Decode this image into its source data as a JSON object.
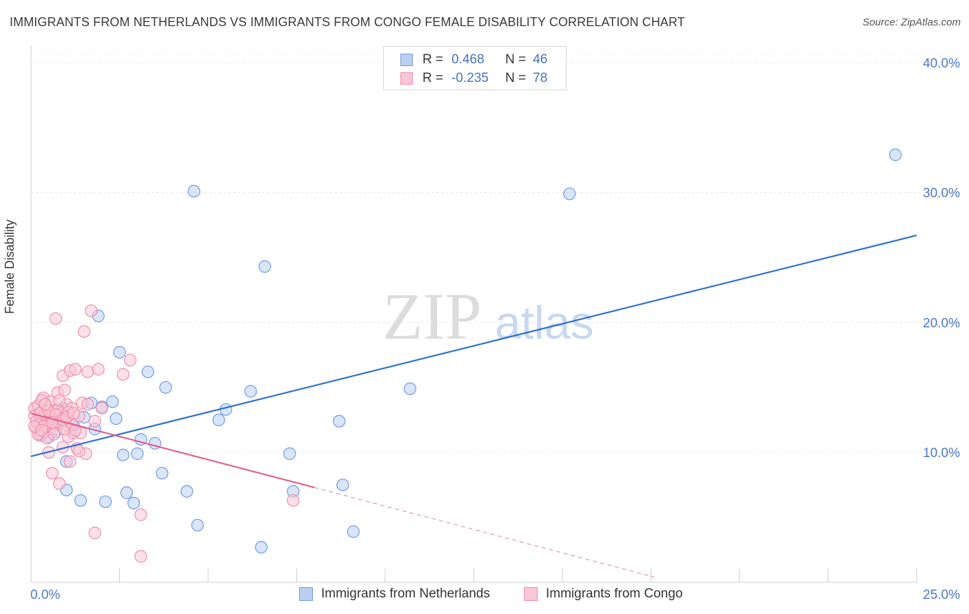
{
  "title": "IMMIGRANTS FROM NETHERLANDS VS IMMIGRANTS FROM CONGO FEMALE DISABILITY CORRELATION CHART",
  "source": "Source: ZipAtlas.com",
  "watermark": {
    "zip": "ZIP",
    "atlas": "atlas"
  },
  "legend": {
    "r_label": "R =",
    "n_label": "N =",
    "rows": [
      {
        "name": "Immigrants from Netherlands",
        "r": "0.468",
        "n": "46",
        "fill": "#b9d0f2",
        "stroke": "#6f9be0"
      },
      {
        "name": "Immigrants from Congo",
        "r": "-0.235",
        "n": "78",
        "fill": "#f9c6d6",
        "stroke": "#ee8eac"
      }
    ]
  },
  "chart_data": {
    "type": "scatter",
    "title": "IMMIGRANTS FROM NETHERLANDS VS IMMIGRANTS FROM CONGO FEMALE DISABILITY CORRELATION CHART",
    "xlabel": "",
    "ylabel": "Female Disability",
    "xlim": [
      0,
      25
    ],
    "ylim": [
      0,
      41
    ],
    "x_tick_labels": [
      "0.0%",
      "25.0%"
    ],
    "y_ticks": [
      10,
      20,
      30,
      40
    ],
    "y_tick_labels": [
      "10.0%",
      "20.0%",
      "30.0%",
      "40.0%"
    ],
    "grid": true,
    "series": [
      {
        "name": "Immigrants from Netherlands",
        "color": "#7aa6e6",
        "line_color": "#2e6fd0",
        "trend": {
          "x0": 0,
          "y0": 9.7,
          "x1": 25,
          "y1": 26.7
        },
        "points": [
          [
            0.3,
            11.4
          ],
          [
            0.5,
            11.2
          ],
          [
            0.6,
            11.9
          ],
          [
            0.8,
            12.6
          ],
          [
            0.9,
            13.4
          ],
          [
            1.0,
            9.3
          ],
          [
            1.0,
            7.1
          ],
          [
            1.1,
            12.4
          ],
          [
            1.4,
            6.3
          ],
          [
            1.5,
            12.7
          ],
          [
            1.7,
            13.8
          ],
          [
            1.8,
            11.8
          ],
          [
            1.9,
            20.5
          ],
          [
            2.0,
            13.5
          ],
          [
            2.1,
            6.2
          ],
          [
            2.3,
            13.9
          ],
          [
            2.4,
            12.6
          ],
          [
            2.5,
            17.7
          ],
          [
            2.6,
            9.8
          ],
          [
            2.7,
            6.9
          ],
          [
            2.9,
            6.1
          ],
          [
            3.0,
            9.9
          ],
          [
            3.1,
            11.0
          ],
          [
            3.3,
            16.2
          ],
          [
            3.5,
            10.7
          ],
          [
            3.7,
            8.4
          ],
          [
            3.8,
            15.0
          ],
          [
            4.4,
            7.0
          ],
          [
            4.6,
            30.1
          ],
          [
            4.7,
            4.4
          ],
          [
            5.3,
            12.5
          ],
          [
            5.5,
            13.3
          ],
          [
            6.2,
            14.7
          ],
          [
            6.5,
            2.7
          ],
          [
            6.6,
            24.3
          ],
          [
            7.3,
            9.9
          ],
          [
            7.4,
            7.0
          ],
          [
            8.7,
            12.4
          ],
          [
            8.8,
            7.5
          ],
          [
            9.1,
            3.9
          ],
          [
            10.7,
            14.9
          ],
          [
            15.2,
            29.9
          ],
          [
            24.4,
            32.9
          ],
          [
            0.4,
            12.9
          ],
          [
            0.7,
            11.6
          ],
          [
            1.2,
            12.1
          ]
        ]
      },
      {
        "name": "Immigrants from Congo",
        "color": "#f29ab5",
        "line_color": "#e0608c",
        "trend": {
          "x0": 0,
          "y0": 13.0,
          "x1": 8.0,
          "y1": 7.3
        },
        "trend_dashed": {
          "x0": 8.0,
          "y0": 7.3,
          "x1": 17.6,
          "y1": 0.4
        },
        "points": [
          [
            0.1,
            13.4
          ],
          [
            0.1,
            12.8
          ],
          [
            0.15,
            11.9
          ],
          [
            0.2,
            13.6
          ],
          [
            0.2,
            12.2
          ],
          [
            0.25,
            11.3
          ],
          [
            0.3,
            13.1
          ],
          [
            0.3,
            12.5
          ],
          [
            0.35,
            14.2
          ],
          [
            0.4,
            12.9
          ],
          [
            0.4,
            11.6
          ],
          [
            0.45,
            13.5
          ],
          [
            0.5,
            12.0
          ],
          [
            0.5,
            10.0
          ],
          [
            0.55,
            13.9
          ],
          [
            0.6,
            12.6
          ],
          [
            0.6,
            8.4
          ],
          [
            0.65,
            13.2
          ],
          [
            0.7,
            20.3
          ],
          [
            0.7,
            11.8
          ],
          [
            0.75,
            14.6
          ],
          [
            0.8,
            12.3
          ],
          [
            0.8,
            7.6
          ],
          [
            0.85,
            13.0
          ],
          [
            0.9,
            15.9
          ],
          [
            0.9,
            10.4
          ],
          [
            0.95,
            14.8
          ],
          [
            1.0,
            13.7
          ],
          [
            1.0,
            12.1
          ],
          [
            1.05,
            11.2
          ],
          [
            1.1,
            16.3
          ],
          [
            1.1,
            9.3
          ],
          [
            1.15,
            13.4
          ],
          [
            1.2,
            11.5
          ],
          [
            1.25,
            16.4
          ],
          [
            1.3,
            10.3
          ],
          [
            1.35,
            12.8
          ],
          [
            1.4,
            11.5
          ],
          [
            1.45,
            13.8
          ],
          [
            1.5,
            19.3
          ],
          [
            1.55,
            9.9
          ],
          [
            1.6,
            13.7
          ],
          [
            1.6,
            16.2
          ],
          [
            1.7,
            20.9
          ],
          [
            1.8,
            12.4
          ],
          [
            1.8,
            3.8
          ],
          [
            1.9,
            16.4
          ],
          [
            2.0,
            13.4
          ],
          [
            2.6,
            16.0
          ],
          [
            2.8,
            17.1
          ],
          [
            3.1,
            5.2
          ],
          [
            3.1,
            2.0
          ],
          [
            7.4,
            6.3
          ],
          [
            0.15,
            12.4
          ],
          [
            0.25,
            13.0
          ],
          [
            0.35,
            12.0
          ],
          [
            0.45,
            11.1
          ],
          [
            0.55,
            12.8
          ],
          [
            0.65,
            11.4
          ],
          [
            0.75,
            13.3
          ],
          [
            0.85,
            12.6
          ],
          [
            0.95,
            11.8
          ],
          [
            1.05,
            13.1
          ],
          [
            1.15,
            12.2
          ],
          [
            1.25,
            11.7
          ],
          [
            1.35,
            10.1
          ],
          [
            0.3,
            14.0
          ],
          [
            0.5,
            13.2
          ],
          [
            0.7,
            12.9
          ],
          [
            0.9,
            12.5
          ],
          [
            0.2,
            11.4
          ],
          [
            0.4,
            13.7
          ],
          [
            0.6,
            12.3
          ],
          [
            0.8,
            14.0
          ],
          [
            1.0,
            12.7
          ],
          [
            1.2,
            13.0
          ],
          [
            0.1,
            12.0
          ],
          [
            0.3,
            11.7
          ]
        ]
      }
    ]
  }
}
